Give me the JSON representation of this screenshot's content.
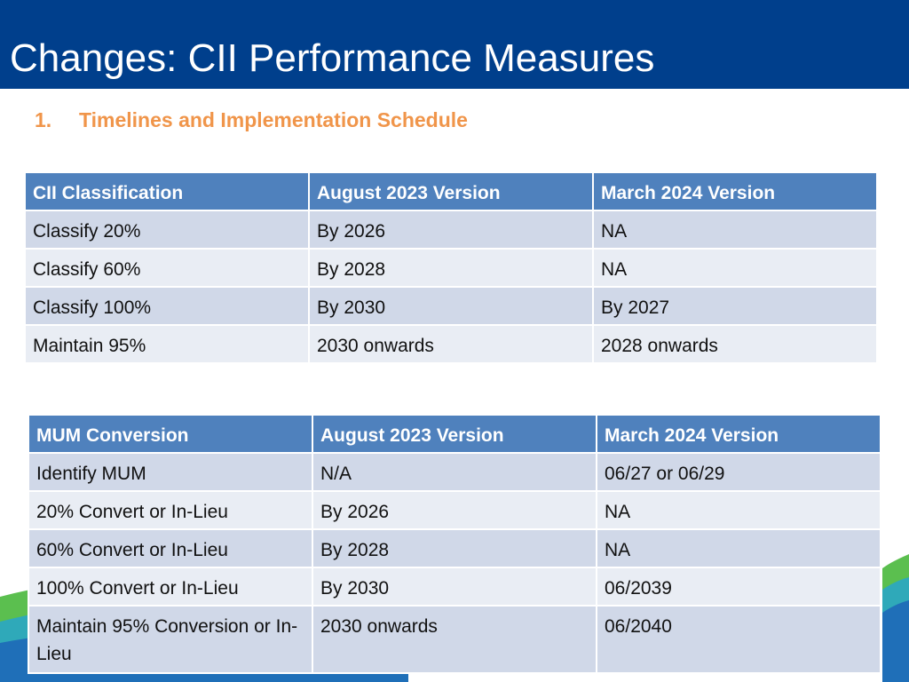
{
  "slide": {
    "title": "Changes: CII Performance Measures",
    "section_number": "1.",
    "section_title": "Timelines and Implementation Schedule"
  },
  "table1": {
    "headers": [
      "CII Classification",
      "August 2023 Version",
      "March 2024 Version"
    ],
    "rows": [
      [
        "Classify 20%",
        "By 2026",
        "NA"
      ],
      [
        "Classify 60%",
        "By 2028",
        "NA"
      ],
      [
        "Classify 100%",
        "By 2030",
        "By 2027"
      ],
      [
        "Maintain 95%",
        "2030 onwards",
        "2028 onwards"
      ]
    ]
  },
  "table2": {
    "headers": [
      "MUM Conversion",
      "August 2023 Version",
      "March 2024 Version"
    ],
    "rows": [
      [
        "Identify MUM",
        "N/A",
        "06/27 or 06/29"
      ],
      [
        "20% Convert or In-Lieu",
        "By 2026",
        "NA"
      ],
      [
        "60% Convert or In-Lieu",
        "By 2028",
        "NA"
      ],
      [
        "100% Convert or In-Lieu",
        "By 2030",
        "06/2039"
      ],
      [
        "Maintain 95% Conversion or In-Lieu",
        "2030 onwards",
        "06/2040"
      ]
    ]
  },
  "colors": {
    "title_bar": "#003f8c",
    "section_title": "#f0954a",
    "table_header": "#4f81bd",
    "row_band_dark": "#d0d8e8",
    "row_band_light": "#e9edf4",
    "wave_green": "#5bbf4f",
    "wave_teal": "#2fa9b9",
    "wave_blue": "#1f6fb8"
  }
}
